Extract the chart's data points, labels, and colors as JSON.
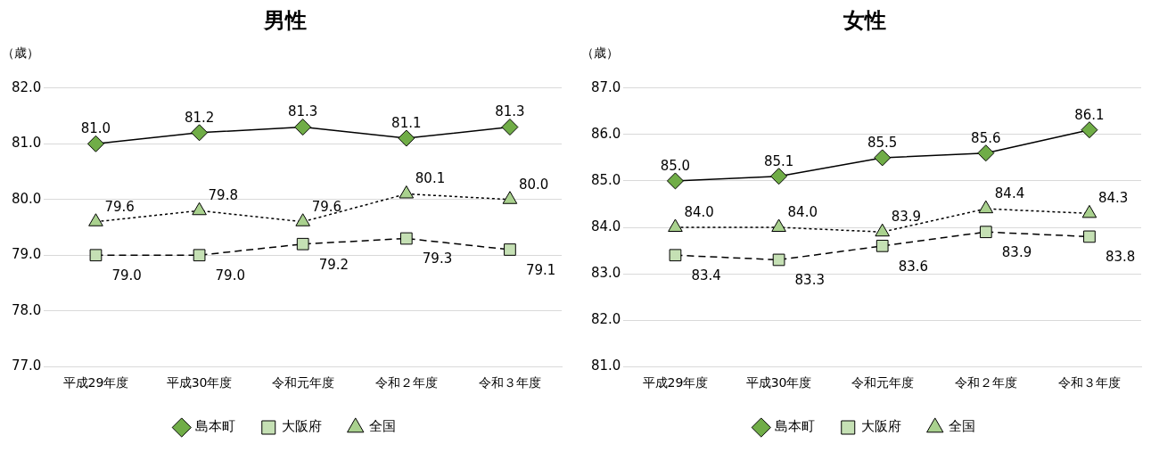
{
  "chart_data": [
    {
      "type": "line",
      "title": "男性",
      "ylabel": "（歳）",
      "categories": [
        "平成29年度",
        "平成30年度",
        "令和元年度",
        "令和２年度",
        "令和３年度"
      ],
      "ylim": [
        77,
        82
      ],
      "yticks": [
        {
          "value": 77,
          "label": "77.0"
        },
        {
          "value": 78,
          "label": "78.0"
        },
        {
          "value": 79,
          "label": "79.0"
        },
        {
          "value": 80,
          "label": "80.0"
        },
        {
          "value": 81,
          "label": "81.0"
        },
        {
          "value": 82,
          "label": "82.0"
        }
      ],
      "grid": "y",
      "legend": "bottom",
      "series": [
        {
          "name": "島本町",
          "color": "#70ad47",
          "marker": "diamond",
          "line_style": "solid",
          "values": [
            81.0,
            81.2,
            81.3,
            81.1,
            81.3
          ],
          "value_labels": [
            "81.0",
            "81.2",
            "81.3",
            "81.1",
            "81.3"
          ]
        },
        {
          "name": "大阪府",
          "color": "#c5e0b4",
          "marker": "square",
          "line_style": "dashed",
          "values": [
            79.0,
            79.0,
            79.2,
            79.3,
            79.1
          ],
          "value_labels": [
            "79.0",
            "79.0",
            "79.2",
            "79.3",
            "79.1"
          ]
        },
        {
          "name": "全国",
          "color": "#a9d18e",
          "marker": "triangle",
          "line_style": "dotted",
          "values": [
            79.6,
            79.8,
            79.6,
            80.1,
            80.0
          ],
          "value_labels": [
            "79.6",
            "79.8",
            "79.6",
            "80.1",
            "80.0"
          ]
        }
      ]
    },
    {
      "type": "line",
      "title": "女性",
      "ylabel": "（歳）",
      "categories": [
        "平成29年度",
        "平成30年度",
        "令和元年度",
        "令和２年度",
        "令和３年度"
      ],
      "ylim": [
        81,
        87
      ],
      "yticks": [
        {
          "value": 81,
          "label": "81.0"
        },
        {
          "value": 82,
          "label": "82.0"
        },
        {
          "value": 83,
          "label": "83.0"
        },
        {
          "value": 84,
          "label": "84.0"
        },
        {
          "value": 85,
          "label": "85.0"
        },
        {
          "value": 86,
          "label": "86.0"
        },
        {
          "value": 87,
          "label": "87.0"
        }
      ],
      "grid": "y",
      "legend": "bottom",
      "series": [
        {
          "name": "島本町",
          "color": "#70ad47",
          "marker": "diamond",
          "line_style": "solid",
          "values": [
            85.0,
            85.1,
            85.5,
            85.6,
            86.1
          ],
          "value_labels": [
            "85.0",
            "85.1",
            "85.5",
            "85.6",
            "86.1"
          ]
        },
        {
          "name": "大阪府",
          "color": "#c5e0b4",
          "marker": "square",
          "line_style": "dashed",
          "values": [
            83.4,
            83.3,
            83.6,
            83.9,
            83.8
          ],
          "value_labels": [
            "83.4",
            "83.3",
            "83.6",
            "83.9",
            "83.8"
          ]
        },
        {
          "name": "全国",
          "color": "#a9d18e",
          "marker": "triangle",
          "line_style": "dotted",
          "values": [
            84.0,
            84.0,
            83.9,
            84.4,
            84.3
          ],
          "value_labels": [
            "84.0",
            "84.0",
            "83.9",
            "84.4",
            "84.3"
          ]
        }
      ]
    }
  ]
}
